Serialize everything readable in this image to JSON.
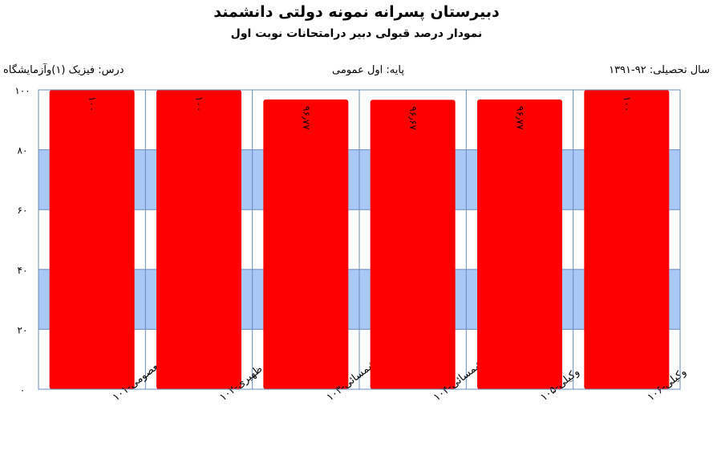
{
  "header": {
    "title": "دبیرستان پسرانه نمونه دولتی دانشمند",
    "subtitle": "نمودار درصد قبولی دبیر درامتحانات نوبت اول"
  },
  "meta": {
    "year": "سال تحصیلی: ۹۲-۱۳۹۱",
    "grade": "پایه: اول عمومی",
    "course": "درس: فیزیک (۱)وآزمایشگاه"
  },
  "colors": {
    "bar": "#ff0000",
    "band": "#a9c8f5",
    "grid": "#6a8cc0"
  },
  "chart_data": {
    "type": "bar",
    "categories": [
      "معصومی-۱۰۱",
      "ظهیری-۱۰۲",
      "شمسائی-۱۰۳",
      "شمسائی-۱۰۴",
      "وکیلی-۱۰۵",
      "وکیلی-۱۰۶"
    ],
    "values": [
      100,
      100,
      96.77,
      96.67,
      96.77,
      100
    ],
    "data_labels": [
      "۱۰۰",
      "۱۰۰",
      "۹۶٫۷۷",
      "۹۶٫۶۷",
      "۹۶٫۷۷",
      "۱۰۰"
    ],
    "ylim": [
      0,
      100
    ],
    "yticks": [
      0,
      20,
      40,
      60,
      80,
      100
    ],
    "ytick_labels": [
      "۰",
      "۲۰",
      "۴۰",
      "۶۰",
      "۸۰",
      "۱۰۰"
    ],
    "grid": true,
    "alternating_bands": true
  }
}
